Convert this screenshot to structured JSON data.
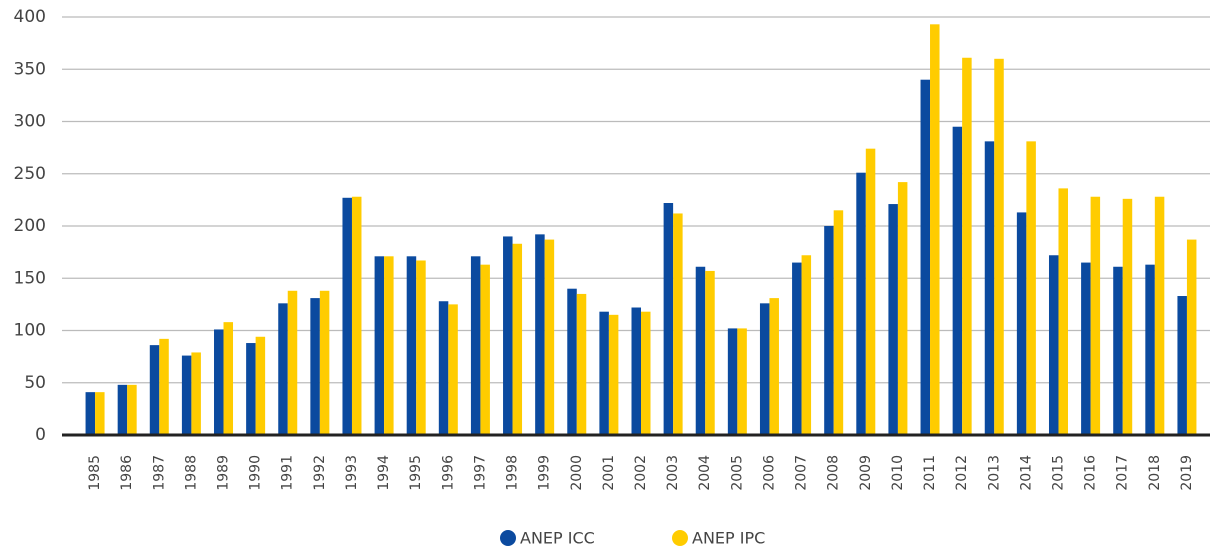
{
  "chart_data": {
    "type": "bar",
    "categories": [
      "1985",
      "1986",
      "1987",
      "1988",
      "1989",
      "1990",
      "1991",
      "1992",
      "1993",
      "1994",
      "1995",
      "1996",
      "1997",
      "1998",
      "1999",
      "2000",
      "2001",
      "2002",
      "2003",
      "2004",
      "2005",
      "2006",
      "2007",
      "2008",
      "2009",
      "2010",
      "2011",
      "2012",
      "2013",
      "2014",
      "2015",
      "2016",
      "2017",
      "2018",
      "2019"
    ],
    "series": [
      {
        "name": "ANEP ICC",
        "color": "#0b4a9f",
        "values": [
          41,
          48,
          86,
          76,
          101,
          88,
          126,
          131,
          227,
          171,
          171,
          128,
          171,
          190,
          192,
          140,
          118,
          122,
          222,
          161,
          102,
          126,
          165,
          200,
          251,
          221,
          340,
          295,
          281,
          213,
          172,
          165,
          161,
          163,
          133
        ]
      },
      {
        "name": "ANEP IPC",
        "color": "#ffcc00",
        "values": [
          41,
          48,
          92,
          79,
          108,
          94,
          138,
          138,
          228,
          171,
          167,
          125,
          163,
          183,
          187,
          135,
          115,
          118,
          212,
          157,
          102,
          131,
          172,
          215,
          274,
          242,
          393,
          361,
          360,
          281,
          236,
          228,
          226,
          228,
          187
        ]
      }
    ],
    "ylim": [
      0,
      400
    ],
    "yticks": [
      0,
      50,
      100,
      150,
      200,
      250,
      300,
      350,
      400
    ],
    "grid": true
  }
}
